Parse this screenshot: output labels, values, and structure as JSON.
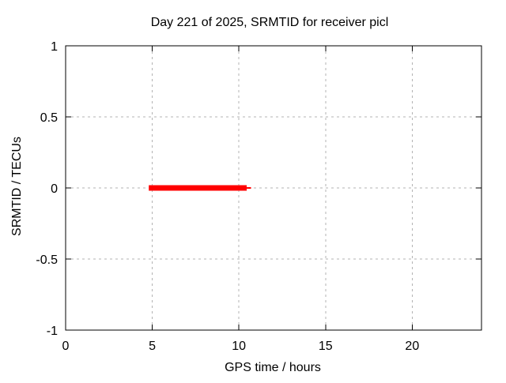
{
  "chart_data": {
    "type": "line",
    "title": "Day 221 of 2025, SRMTID for receiver picl",
    "xlabel": "GPS time / hours",
    "ylabel": "SRMTID / TECUs",
    "xlim": [
      0,
      24
    ],
    "ylim": [
      -1,
      1
    ],
    "xticks": {
      "values": [
        0,
        5,
        10,
        15,
        20
      ],
      "labels": [
        "0",
        "5",
        "10",
        "15",
        "20"
      ]
    },
    "yticks": {
      "values": [
        -1,
        -0.5,
        0,
        0.5,
        1
      ],
      "labels": [
        "-1",
        "-0.5",
        "0",
        "0.5",
        "1"
      ]
    },
    "grid": true,
    "legend": false,
    "series": [
      {
        "name": "SRMTID",
        "color": "#ff0000",
        "y": 0,
        "segments": [
          {
            "x_start": 4.8,
            "x_end": 10.45,
            "line_width": 7
          },
          {
            "x_start": 10.45,
            "x_end": 10.7,
            "line_width": 2
          }
        ]
      }
    ],
    "colors": {
      "frame": "#000000",
      "grid": "#b3b3b3",
      "data": "#ff0000",
      "background": "#ffffff",
      "text": "#000000"
    }
  }
}
